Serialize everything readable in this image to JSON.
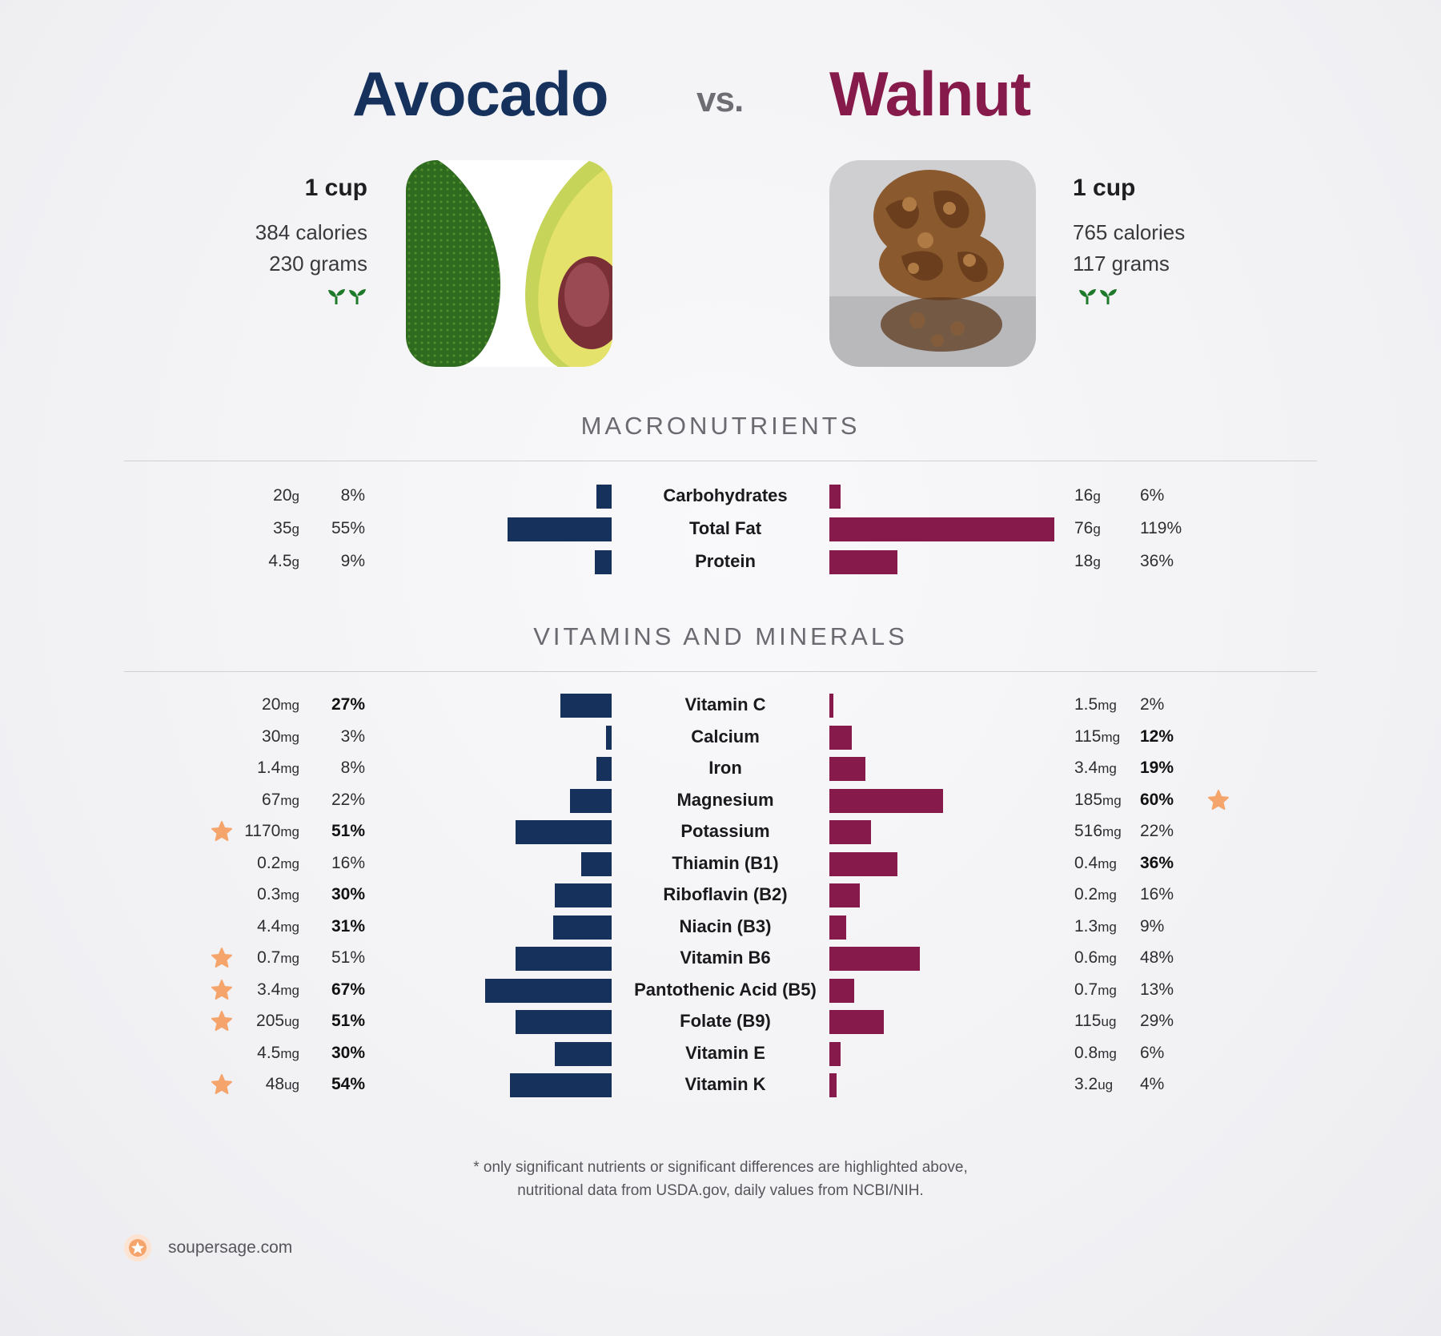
{
  "header": {
    "left_title": "Avocado",
    "vs": "vs.",
    "right_title": "Walnut"
  },
  "left_food": {
    "serving": "1 cup",
    "calories": "384 calories",
    "grams": "230 grams",
    "color": "#16325c",
    "image_icon": "avocado-photo"
  },
  "right_food": {
    "serving": "1 cup",
    "calories": "765 calories",
    "grams": "117 grams",
    "color": "#861a4a",
    "image_icon": "walnut-photo"
  },
  "sections": {
    "macros_title": "MACRONUTRIENTS",
    "vitamins_title": "VITAMINS AND MINERALS"
  },
  "chart_data": [
    {
      "type": "bar",
      "title": "MACRONUTRIENTS",
      "orientation": "diverging-horizontal",
      "categories": [
        "Carbohydrates",
        "Total Fat",
        "Protein"
      ],
      "series": [
        {
          "name": "Avocado",
          "amounts": [
            "20",
            "35",
            "4.5"
          ],
          "units": [
            "g",
            "g",
            "g"
          ],
          "pct_labels": [
            "8%",
            "55%",
            "9%"
          ],
          "values": [
            8,
            55,
            9
          ],
          "bold": [
            false,
            false,
            false
          ],
          "star": [
            false,
            false,
            false
          ]
        },
        {
          "name": "Walnut",
          "amounts": [
            "16",
            "76",
            "18"
          ],
          "units": [
            "g",
            "g",
            "g"
          ],
          "pct_labels": [
            "6%",
            "119%",
            "36%"
          ],
          "values": [
            6,
            119,
            36
          ],
          "bold": [
            false,
            false,
            false
          ],
          "star": [
            false,
            false,
            false
          ]
        }
      ]
    },
    {
      "type": "bar",
      "title": "VITAMINS AND MINERALS",
      "orientation": "diverging-horizontal",
      "categories": [
        "Vitamin C",
        "Calcium",
        "Iron",
        "Magnesium",
        "Potassium",
        "Thiamin (B1)",
        "Riboflavin (B2)",
        "Niacin (B3)",
        "Vitamin B6",
        "Pantothenic Acid (B5)",
        "Folate (B9)",
        "Vitamin E",
        "Vitamin K"
      ],
      "series": [
        {
          "name": "Avocado",
          "amounts": [
            "20",
            "30",
            "1.4",
            "67",
            "1170",
            "0.2",
            "0.3",
            "4.4",
            "0.7",
            "3.4",
            "205",
            "4.5",
            "48"
          ],
          "units": [
            "mg",
            "mg",
            "mg",
            "mg",
            "mg",
            "mg",
            "mg",
            "mg",
            "mg",
            "mg",
            "ug",
            "mg",
            "ug"
          ],
          "pct_labels": [
            "27%",
            "3%",
            "8%",
            "22%",
            "51%",
            "16%",
            "30%",
            "31%",
            "51%",
            "67%",
            "51%",
            "30%",
            "54%"
          ],
          "values": [
            27,
            3,
            8,
            22,
            51,
            16,
            30,
            31,
            51,
            67,
            51,
            30,
            54
          ],
          "bold": [
            true,
            false,
            false,
            false,
            true,
            false,
            true,
            true,
            false,
            true,
            true,
            true,
            true
          ],
          "star": [
            false,
            false,
            false,
            false,
            true,
            false,
            false,
            false,
            true,
            true,
            true,
            false,
            true
          ]
        },
        {
          "name": "Walnut",
          "amounts": [
            "1.5",
            "115",
            "3.4",
            "185",
            "516",
            "0.4",
            "0.2",
            "1.3",
            "0.6",
            "0.7",
            "115",
            "0.8",
            "3.2"
          ],
          "units": [
            "mg",
            "mg",
            "mg",
            "mg",
            "mg",
            "mg",
            "mg",
            "mg",
            "mg",
            "mg",
            "ug",
            "mg",
            "ug"
          ],
          "pct_labels": [
            "2%",
            "12%",
            "19%",
            "60%",
            "22%",
            "36%",
            "16%",
            "9%",
            "48%",
            "13%",
            "29%",
            "6%",
            "4%"
          ],
          "values": [
            2,
            12,
            19,
            60,
            22,
            36,
            16,
            9,
            48,
            13,
            29,
            6,
            4
          ],
          "bold": [
            false,
            true,
            true,
            true,
            false,
            true,
            false,
            false,
            false,
            false,
            false,
            false,
            false
          ],
          "star": [
            false,
            false,
            false,
            true,
            false,
            false,
            false,
            false,
            false,
            false,
            false,
            false,
            false
          ]
        }
      ]
    }
  ],
  "footnote": {
    "line1": "* only significant nutrients or significant differences are highlighted above,",
    "line2": "nutritional data from USDA.gov, daily values from NCBI/NIH."
  },
  "brand": {
    "text": "soupersage.com",
    "star_color": "#f5a46b"
  }
}
